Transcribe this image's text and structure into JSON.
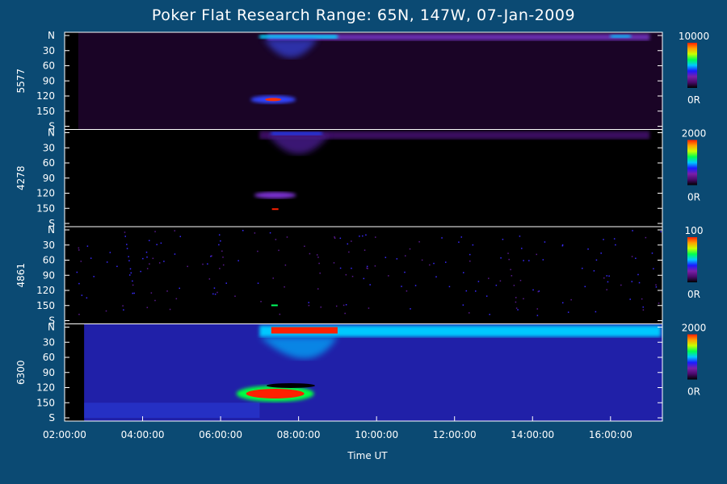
{
  "chart_data": {
    "type": "heatmap",
    "title": "Poker Flat Research Range: 65N, 147W, 07-Jan-2009",
    "xlabel": "Time UT",
    "x_ticks": [
      "02:00:00",
      "04:00:00",
      "06:00:00",
      "08:00:00",
      "10:00:00",
      "12:00:00",
      "14:00:00",
      "16:00:00"
    ],
    "x_range_hours": [
      2.0,
      17.33
    ],
    "y_ticks": [
      "N",
      "30",
      "60",
      "90",
      "120",
      "150",
      "S"
    ],
    "y_tick_values": [
      0,
      30,
      60,
      90,
      120,
      150,
      180
    ],
    "panels": [
      {
        "name": "5577",
        "scale_max": "10000",
        "scale_min": "0R"
      },
      {
        "name": "4278",
        "scale_max": "2000",
        "scale_min": "0R"
      },
      {
        "name": "4861",
        "scale_max": "100",
        "scale_min": "0R"
      },
      {
        "name": "6300",
        "scale_max": "2000",
        "scale_min": "0R"
      }
    ],
    "colormap": [
      "#000000",
      "#4a0a6b",
      "#7a1fa8",
      "#1a1aff",
      "#00c8ff",
      "#00ff50",
      "#c8ff00",
      "#ffa000",
      "#ff2000"
    ]
  }
}
